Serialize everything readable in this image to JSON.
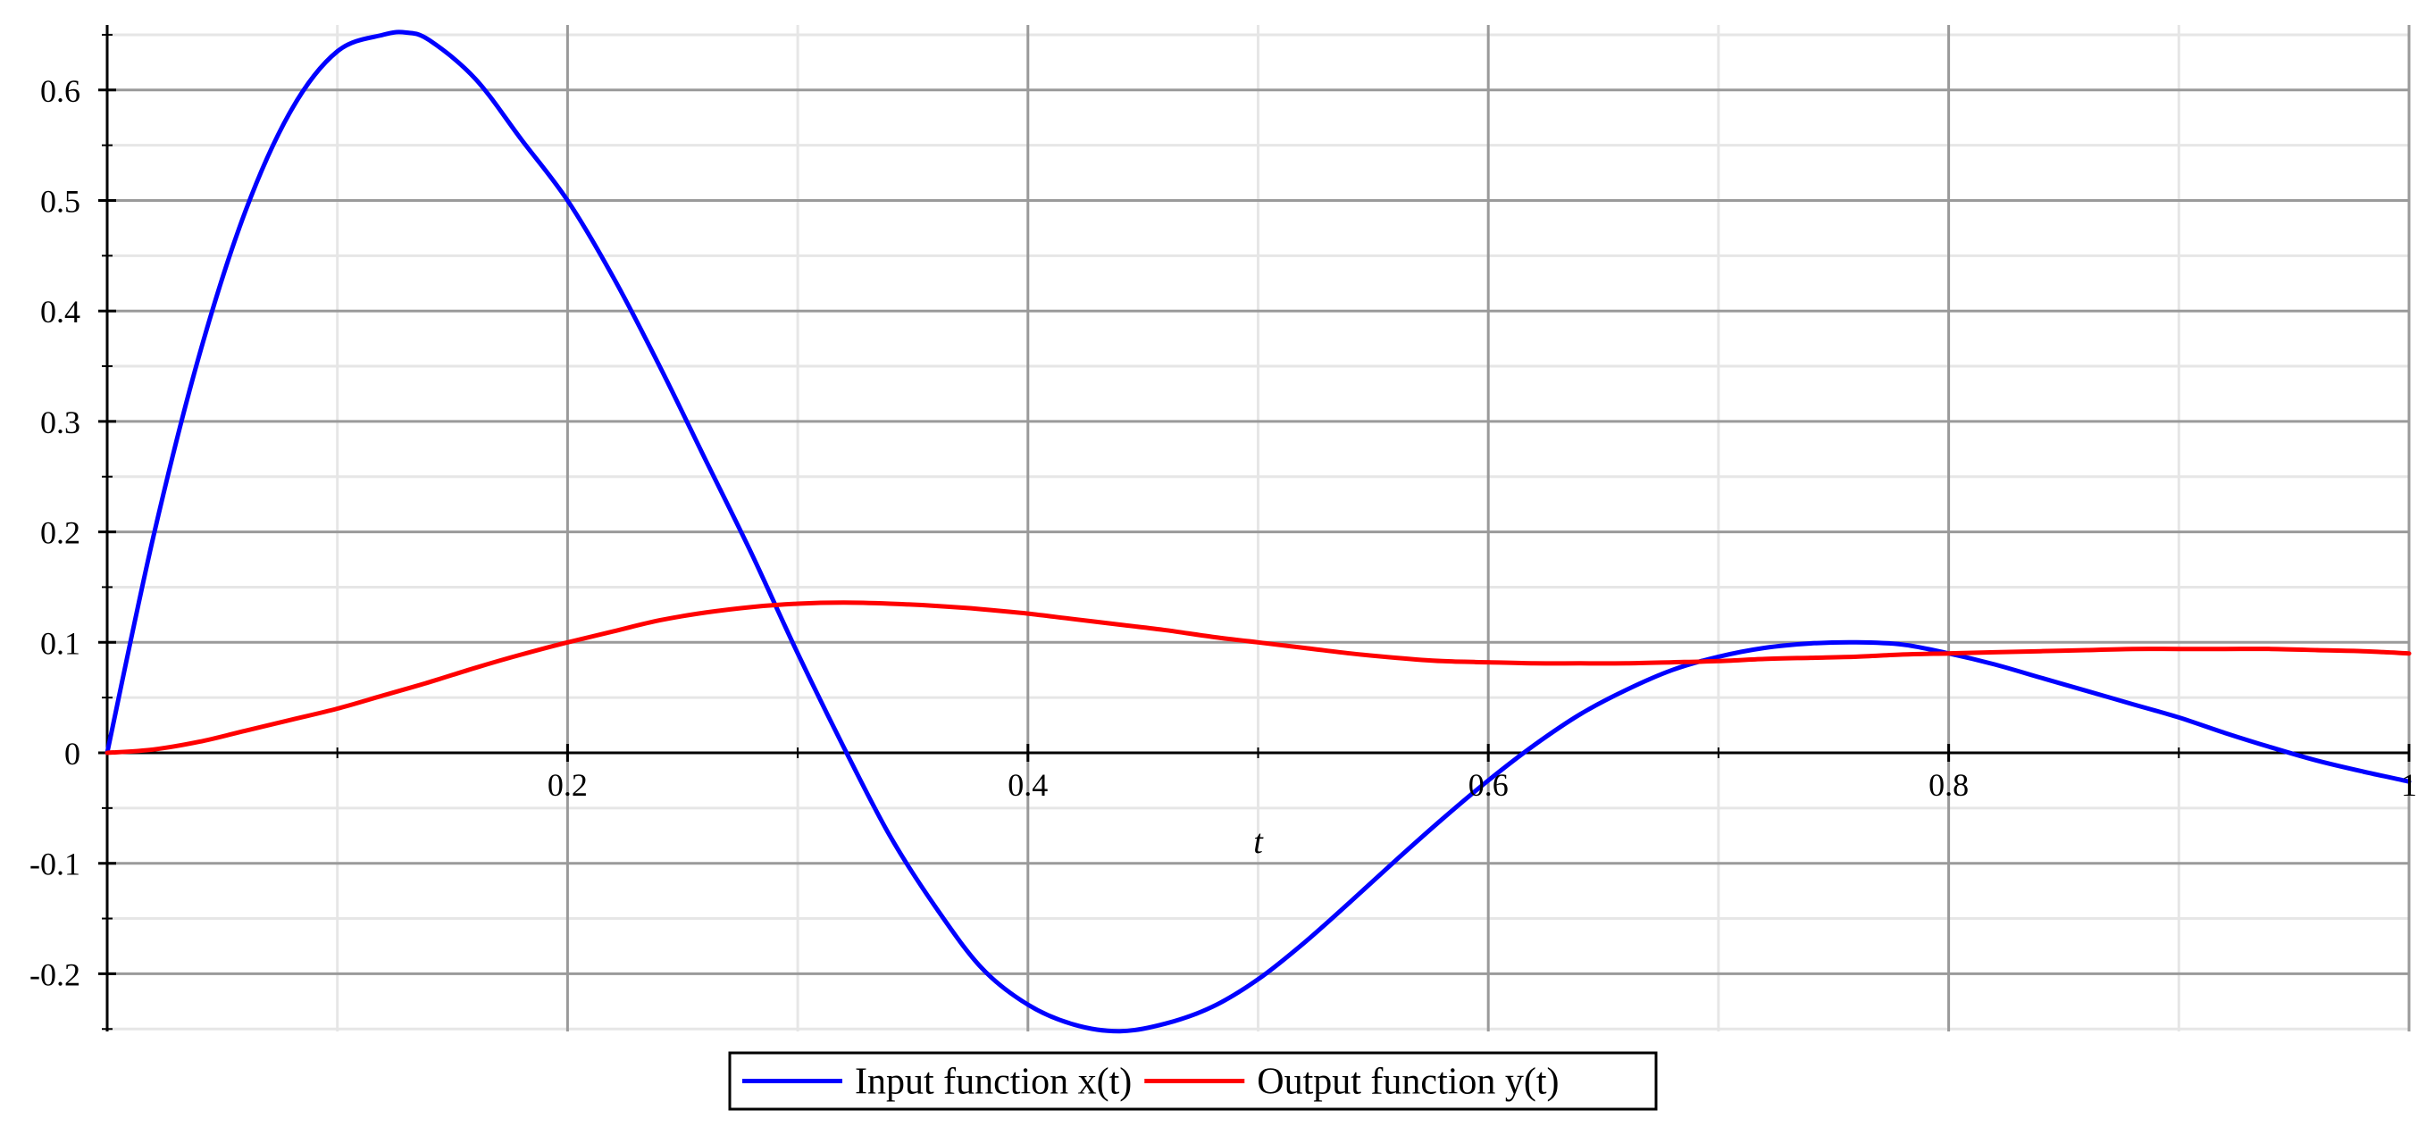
{
  "chart_data": {
    "type": "line",
    "title": "",
    "xlabel": "t",
    "ylabel": "",
    "xlim": [
      0,
      1
    ],
    "ylim": [
      -0.25,
      0.65
    ],
    "grid": true,
    "legend_position": "bottom-center",
    "x_ticks": [
      {
        "value": 0.2,
        "label": "0.2"
      },
      {
        "value": 0.4,
        "label": "0.4"
      },
      {
        "value": 0.6,
        "label": "0.6"
      },
      {
        "value": 0.8,
        "label": "0.8"
      },
      {
        "value": 1,
        "label": "1"
      }
    ],
    "y_ticks": [
      {
        "value": -0.2,
        "label": "-0.2"
      },
      {
        "value": -0.1,
        "label": "-0.1"
      },
      {
        "value": 0,
        "label": "0"
      },
      {
        "value": 0.1,
        "label": "0.1"
      },
      {
        "value": 0.2,
        "label": "0.2"
      },
      {
        "value": 0.3,
        "label": "0.3"
      },
      {
        "value": 0.4,
        "label": "0.4"
      },
      {
        "value": 0.5,
        "label": "0.5"
      },
      {
        "value": 0.6,
        "label": "0.6"
      }
    ],
    "series": [
      {
        "name": "Input function x(t)",
        "color": "#0000ff",
        "x": [
          0,
          0.02,
          0.04,
          0.06,
          0.08,
          0.1,
          0.12,
          0.13,
          0.14,
          0.16,
          0.18,
          0.2,
          0.22,
          0.24,
          0.26,
          0.28,
          0.3,
          0.32,
          0.34,
          0.36,
          0.38,
          0.4,
          0.42,
          0.44,
          0.46,
          0.48,
          0.5,
          0.52,
          0.54,
          0.56,
          0.58,
          0.6,
          0.62,
          0.64,
          0.66,
          0.68,
          0.7,
          0.72,
          0.74,
          0.76,
          0.78,
          0.8,
          0.82,
          0.84,
          0.86,
          0.88,
          0.9,
          0.92,
          0.94,
          0.96,
          0.98,
          1
        ],
        "y": [
          0,
          0.195,
          0.36,
          0.49,
          0.582,
          0.635,
          0.65,
          0.652,
          0.645,
          0.61,
          0.555,
          0.5,
          0.43,
          0.35,
          0.265,
          0.18,
          0.09,
          0.005,
          -0.075,
          -0.14,
          -0.195,
          -0.228,
          -0.246,
          -0.252,
          -0.245,
          -0.23,
          -0.205,
          -0.172,
          -0.135,
          -0.097,
          -0.06,
          -0.025,
          0.007,
          0.035,
          0.057,
          0.075,
          0.087,
          0.095,
          0.099,
          0.1,
          0.098,
          0.09,
          0.08,
          0.068,
          0.056,
          0.044,
          0.032,
          0.018,
          0.005,
          -0.007,
          -0.017,
          -0.026
        ]
      },
      {
        "name": "Output function y(t)",
        "color": "#ff0000",
        "x": [
          0,
          0.02,
          0.04,
          0.06,
          0.08,
          0.1,
          0.12,
          0.14,
          0.16,
          0.18,
          0.2,
          0.22,
          0.24,
          0.26,
          0.28,
          0.3,
          0.32,
          0.34,
          0.36,
          0.38,
          0.4,
          0.42,
          0.44,
          0.46,
          0.48,
          0.5,
          0.52,
          0.54,
          0.56,
          0.58,
          0.6,
          0.62,
          0.64,
          0.66,
          0.68,
          0.7,
          0.72,
          0.74,
          0.76,
          0.78,
          0.8,
          0.82,
          0.84,
          0.86,
          0.88,
          0.9,
          0.92,
          0.94,
          0.96,
          0.98,
          1
        ],
        "y": [
          0,
          0.003,
          0.01,
          0.02,
          0.03,
          0.04,
          0.052,
          0.064,
          0.077,
          0.089,
          0.1,
          0.11,
          0.12,
          0.127,
          0.132,
          0.135,
          0.136,
          0.135,
          0.133,
          0.13,
          0.126,
          0.121,
          0.116,
          0.111,
          0.105,
          0.1,
          0.095,
          0.09,
          0.086,
          0.083,
          0.082,
          0.081,
          0.081,
          0.081,
          0.082,
          0.083,
          0.085,
          0.086,
          0.087,
          0.089,
          0.09,
          0.091,
          0.092,
          0.093,
          0.094,
          0.094,
          0.094,
          0.094,
          0.093,
          0.092,
          0.09
        ]
      }
    ]
  }
}
